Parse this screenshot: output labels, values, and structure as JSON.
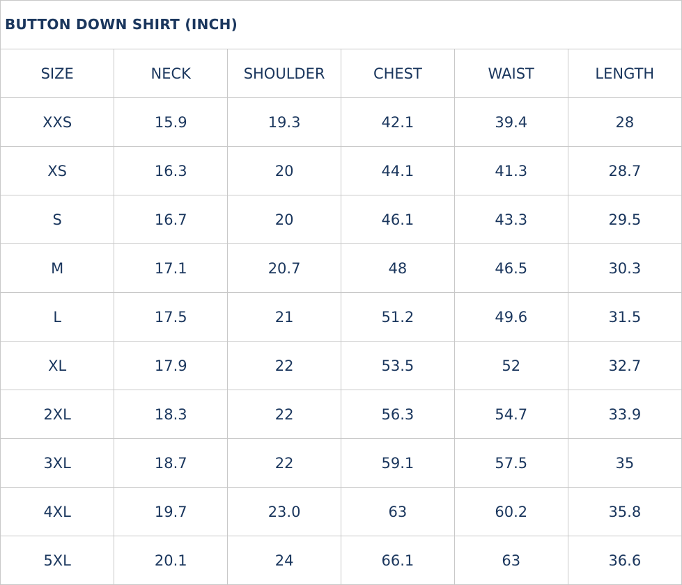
{
  "title": "BUTTON DOWN SHIRT (INCH)",
  "headers": [
    "SIZE",
    "NECK",
    "SHOULDER",
    "CHEST",
    "WAIST",
    "LENGTH"
  ],
  "rows": [
    [
      "XXS",
      "15.9",
      "19.3",
      "42.1",
      "39.4",
      "28"
    ],
    [
      "XS",
      "16.3",
      "20",
      "44.1",
      "41.3",
      "28.7"
    ],
    [
      "S",
      "16.7",
      "20",
      "46.1",
      "43.3",
      "29.5"
    ],
    [
      "M",
      "17.1",
      "20.7",
      "48",
      "46.5",
      "30.3"
    ],
    [
      "L",
      "17.5",
      "21",
      "51.2",
      "49.6",
      "31.5"
    ],
    [
      "XL",
      "17.9",
      "22",
      "53.5",
      "52",
      "32.7"
    ],
    [
      "2XL",
      "18.3",
      "22",
      "56.3",
      "54.7",
      "33.9"
    ],
    [
      "3XL",
      "18.7",
      "22",
      "59.1",
      "57.5",
      "35"
    ],
    [
      "4XL",
      "19.7",
      "23.0",
      "63",
      "60.2",
      "35.8"
    ],
    [
      "5XL",
      "20.1",
      "24",
      "66.1",
      "63",
      "36.6"
    ]
  ],
  "colors": {
    "text": "#1a365d",
    "border": "#c8c8c8"
  }
}
